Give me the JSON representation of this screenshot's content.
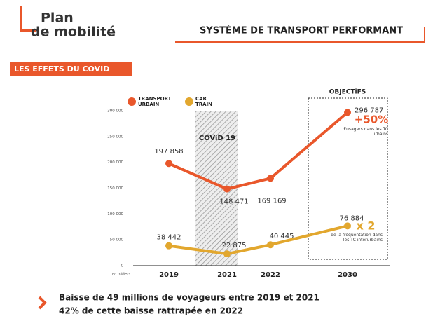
{
  "header": {
    "logo_line1": "Plan",
    "logo_line2": "de mobilité",
    "title": "SYSTÈME DE TRANSPORT PERFORMANT"
  },
  "section": "LES EFFETS DU COVID",
  "chart_data": {
    "type": "line",
    "categories": [
      "2019",
      "2021",
      "2022",
      "2030"
    ],
    "series": [
      {
        "name": "TRANSPORT URBAIN",
        "color": "#e9572b",
        "values": [
          197858,
          148471,
          169169,
          296787
        ],
        "value_labels": [
          "197 858",
          "148 471",
          "169 169",
          "296 787"
        ]
      },
      {
        "name": "CAR TRAIN",
        "color": "#e2a72e",
        "values": [
          38442,
          22875,
          40445,
          76884
        ],
        "value_labels": [
          "38 442",
          "22 875",
          "40 445",
          "76 884"
        ]
      }
    ],
    "ylim": [
      0,
      300000
    ],
    "yticks": [
      0,
      {
        "value": 50000,
        "label": "50 000"
      },
      {
        "value": 100000,
        "label": "100 000"
      },
      {
        "value": 150000,
        "label": "150 000"
      },
      {
        "value": 200000,
        "label": "200 000"
      },
      {
        "value": 250000,
        "label": "250 000"
      },
      {
        "value": 300000,
        "label": "300 000"
      }
    ],
    "y_unit": "en milliers",
    "annotations": {
      "covid": "COViD 19",
      "objectives": "OBJECTiFS",
      "urban_gain": "+50%",
      "urban_gain_note": "d'usagers dans les TC urbains",
      "train_gain": "x 2",
      "train_gain_note": "de la fréquentation dans les TC interurbains"
    }
  },
  "conclusion": [
    "Baisse de 49 millions de voyageurs entre 2019 et 2021",
    "42% de cette baisse rattrapée en 2022"
  ]
}
